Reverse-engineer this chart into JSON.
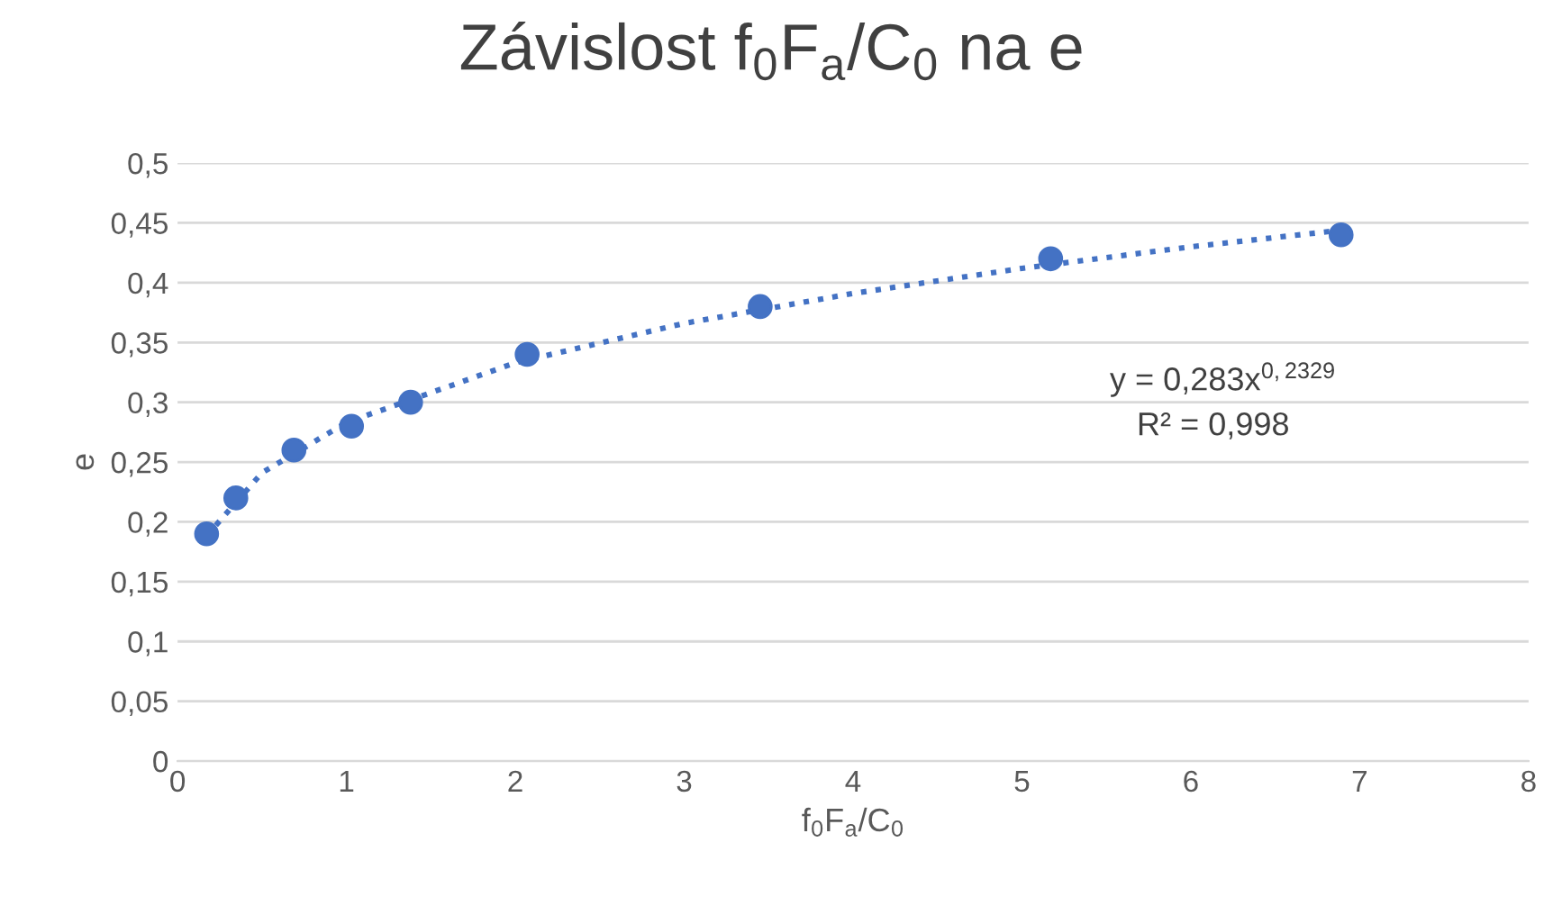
{
  "chart_data": {
    "type": "scatter",
    "title": "Závislost f$_{0}$F$_{a}$/C$_{0}$ na e",
    "xlabel": "f$_{0}$F$_{a}$/C$_{0}$",
    "ylabel": "e",
    "x": [
      0.172,
      0.345,
      0.689,
      1.03,
      1.38,
      2.07,
      3.45,
      5.17,
      6.89
    ],
    "series": [
      {
        "color": "#4472c4",
        "marker": "circle",
        "values": [
          0.19,
          0.22,
          0.26,
          0.28,
          0.3,
          0.34,
          0.38,
          0.42,
          0.44
        ]
      },
      {
        "type": "line",
        "color": "#4472c4",
        "line_style": "dotted",
        "x": [
          0.17,
          0.5,
          1,
          2,
          3,
          4,
          5,
          6,
          6.9
        ],
        "values": [
          0.188,
          0.241,
          0.283,
          0.333,
          0.366,
          0.391,
          0.412,
          0.43,
          0.444
        ]
      }
    ],
    "annotations": [
      "y = 0,283x$^{0,2329}$",
      "R² = 0,998"
    ],
    "xlim": [
      0,
      8
    ],
    "xticks": [
      0,
      1,
      2,
      3,
      4,
      5,
      6,
      7,
      8
    ],
    "ylim": [
      0,
      0.5
    ],
    "yticks": [
      0,
      {
        "value": 0.05,
        "label": "0,05"
      },
      {
        "value": 0.1,
        "label": "0,1"
      },
      {
        "value": 0.15,
        "label": "0,15"
      },
      {
        "value": 0.2,
        "label": "0,2"
      },
      {
        "value": 0.25,
        "label": "0,25"
      },
      {
        "value": 0.3,
        "label": "0,3"
      },
      {
        "value": 0.35,
        "label": "0,35"
      },
      {
        "value": 0.4,
        "label": "0,4"
      },
      {
        "value": 0.45,
        "label": "0,45"
      },
      {
        "value": 0.5,
        "label": "0,5"
      }
    ],
    "grid": "y",
    "legend": false
  }
}
